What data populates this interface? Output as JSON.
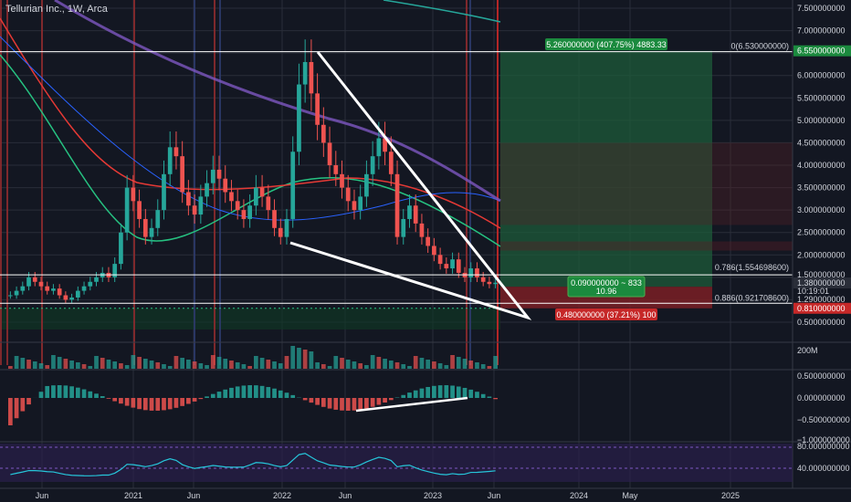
{
  "header": {
    "title": "Tellurian Inc., 1W, Arca"
  },
  "colors": {
    "bg": "#131722",
    "up": "#26a69a",
    "down": "#ef5350",
    "grid": "#2a2e39",
    "axis_text": "#d1d4dc",
    "profit_zone": "#1e5b3a",
    "loss_zone": "#7a1f24",
    "rsi_band": "#2a1f4a",
    "macd_line": "#ffffff"
  },
  "price_axis": {
    "ticks": [
      "7.500000000",
      "7.000000000",
      "6.550000000",
      "6.000000000",
      "5.500000000",
      "5.000000000",
      "4.500000000",
      "4.000000000",
      "3.500000000",
      "3.000000000",
      "2.500000000",
      "2.000000000",
      "1.500000000",
      "1.380000000",
      "1.290000000",
      "0.810000000",
      "0.500000000"
    ],
    "current_price": "1.380000000",
    "countdown": "10:19:01",
    "target_price": "6.550000000",
    "stop_price": "0.810000000"
  },
  "fib_labels": {
    "top": "0(6.530000000)",
    "f786": "0.786(1.554698600)",
    "f886": "0.886(0.921708600)"
  },
  "position_tool": {
    "target": "5.260000000 (407.75%) 4883.33",
    "entry_line1": "0.090000000 ~ 833",
    "entry_line2": "10.96",
    "stop": "0.480000000 (37.21%) 100"
  },
  "volume_axis": {
    "label": "200M"
  },
  "macd_axis": {
    "ticks": [
      "0.500000000",
      "0.000000000",
      "−0.500000000",
      "−1.000000000"
    ]
  },
  "rsi_axis": {
    "ticks": [
      "80.000000000",
      "40.000000000"
    ]
  },
  "time_axis": {
    "labels": [
      "Jun",
      "2021",
      "Jun",
      "2022",
      "Jun",
      "2023",
      "Jun",
      "2024",
      "May",
      "2025"
    ]
  },
  "chart_data": {
    "type": "candlestick",
    "title": "Tellurian Inc., 1W, Arca",
    "price_range": [
      0.3,
      7.6
    ],
    "approx_closes": [
      1.1,
      1.2,
      1.3,
      1.5,
      1.4,
      1.3,
      1.2,
      1.25,
      1.1,
      1.0,
      1.05,
      1.2,
      1.3,
      1.4,
      1.5,
      1.6,
      1.5,
      1.8,
      2.5,
      3.5,
      3.2,
      2.8,
      2.4,
      2.6,
      3.0,
      3.8,
      4.4,
      4.2,
      3.4,
      3.1,
      2.9,
      3.3,
      3.6,
      3.9,
      3.7,
      3.4,
      3.2,
      3.0,
      2.8,
      3.1,
      3.5,
      3.3,
      3.0,
      2.6,
      2.4,
      2.8,
      4.3,
      5.8,
      6.3,
      5.6,
      4.9,
      4.5,
      4.0,
      3.8,
      3.5,
      3.2,
      3.0,
      3.3,
      3.8,
      4.2,
      4.6,
      4.3,
      3.8,
      2.4,
      2.8,
      3.1,
      2.7,
      2.4,
      2.2,
      2.0,
      1.8,
      1.7,
      1.9,
      1.6,
      1.5,
      1.7,
      1.5,
      1.4,
      1.35,
      1.38
    ],
    "fib_levels": [
      {
        "label": "0",
        "value": 6.53
      },
      {
        "label": "0.786",
        "value": 1.5546986
      },
      {
        "label": "0.886",
        "value": 0.9217086
      }
    ],
    "position": {
      "entry": 1.29,
      "target": 6.55,
      "stop": 0.81
    },
    "last_price": 1.38,
    "indicators": [
      "volume",
      "macd",
      "rsi"
    ],
    "rsi_levels": [
      80,
      40
    ]
  }
}
